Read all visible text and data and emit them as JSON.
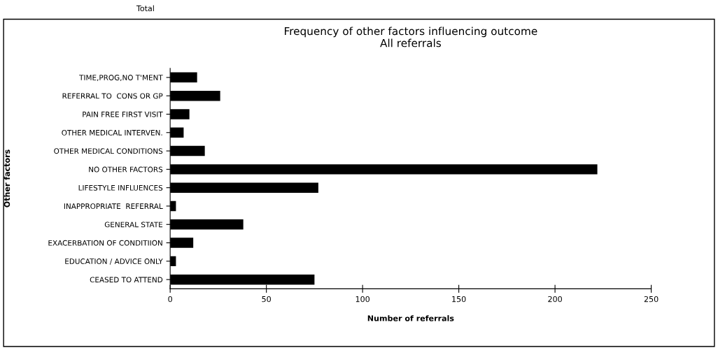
{
  "chart_data": {
    "type": "bar",
    "orientation": "horizontal",
    "title": "Frequency of other factors influencing outcome\nAll referrals",
    "xlabel": "Number of referrals",
    "ylabel": "Other factors",
    "categories": [
      "TIME,PROG,NO T'MENT",
      "REFERRAL TO  CONS OR GP",
      "PAIN FREE FIRST VISIT",
      "OTHER MEDICAL INTERVEN.",
      "OTHER MEDICAL CONDITIONS",
      "NO OTHER FACTORS",
      "LIFESTYLE INFLUENCES",
      "INAPPROPRIATE  REFERRAL",
      "GENERAL STATE",
      "EXACERBATION OF CONDITIION",
      "EDUCATION / ADVICE ONLY",
      "CEASED TO ATTEND"
    ],
    "values": [
      14,
      26,
      10,
      7,
      18,
      222,
      77,
      3,
      38,
      12,
      3,
      75
    ],
    "color": "#000000",
    "xlim": [
      0,
      250
    ],
    "xticks": [
      0,
      50,
      100,
      150,
      200,
      250
    ],
    "grid": false,
    "legend": false,
    "annotations": [
      "Total"
    ]
  }
}
